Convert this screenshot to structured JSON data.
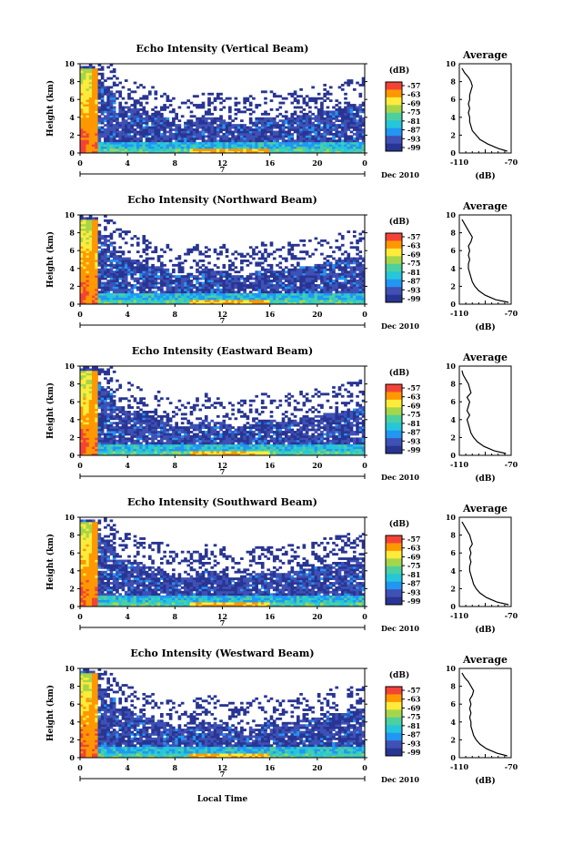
{
  "chart_data": [
    {
      "type": "heatmap",
      "title": "Echo Intensity (Vertical Beam)",
      "ylabel": "Height (km)",
      "ylim": [
        0,
        10
      ],
      "xlim": [
        0,
        24
      ],
      "yticks": [
        "0",
        "2",
        "4",
        "6",
        "8",
        "10"
      ],
      "xticks": [
        "0",
        "4",
        "8",
        "12",
        "16",
        "20",
        "0"
      ],
      "date_marker": "7",
      "date_label": "Dec 2010",
      "colorbar_unit": "(dB)",
      "colorbar_ticks": [
        "-57",
        "-63",
        "-69",
        "-75",
        "-81",
        "-87",
        "-93",
        "-99"
      ],
      "average": {
        "title": "Average",
        "xlabel": "(dB)",
        "xlim": [
          -110,
          -70
        ],
        "xticks": [
          "-110",
          "-70"
        ],
        "heights": [
          0.2,
          0.5,
          1.0,
          1.5,
          2.0,
          2.5,
          3.0,
          3.5,
          4.0,
          4.5,
          5.0,
          5.5,
          6.0,
          6.5,
          7.0,
          7.5,
          8.0,
          8.5,
          9.0,
          9.5
        ],
        "values": [
          -73,
          -80,
          -88,
          -94,
          -97,
          -100,
          -101,
          -102,
          -102,
          -103,
          -102,
          -103,
          -102,
          -102,
          -101,
          -100,
          -101,
          -103,
          -106,
          -108
        ]
      }
    },
    {
      "type": "heatmap",
      "title": "Echo Intensity (Northward Beam)",
      "ylabel": "Height (km)",
      "ylim": [
        0,
        10
      ],
      "xlim": [
        0,
        24
      ],
      "yticks": [
        "0",
        "2",
        "4",
        "6",
        "8",
        "10"
      ],
      "xticks": [
        "0",
        "4",
        "8",
        "12",
        "16",
        "20",
        "0"
      ],
      "date_marker": "7",
      "date_label": "Dec 2010",
      "colorbar_unit": "(dB)",
      "colorbar_ticks": [
        "-57",
        "-63",
        "-69",
        "-75",
        "-81",
        "-87",
        "-93",
        "-99"
      ],
      "average": {
        "title": "Average",
        "xlabel": "(dB)",
        "xlim": [
          -110,
          -70
        ],
        "xticks": [
          "-110",
          "-70"
        ],
        "heights": [
          0.2,
          0.5,
          1.0,
          1.5,
          2.0,
          2.5,
          3.0,
          3.5,
          4.0,
          4.5,
          5.0,
          5.5,
          6.0,
          6.5,
          7.0,
          7.5,
          8.0,
          8.5,
          9.0,
          9.5
        ],
        "values": [
          -72,
          -82,
          -90,
          -95,
          -98,
          -100,
          -101,
          -102,
          -103,
          -103,
          -102,
          -103,
          -102,
          -103,
          -101,
          -100,
          -102,
          -104,
          -106,
          -108
        ]
      }
    },
    {
      "type": "heatmap",
      "title": "Echo Intensity (Eastward Beam)",
      "ylabel": "Height (km)",
      "ylim": [
        0,
        10
      ],
      "xlim": [
        0,
        24
      ],
      "yticks": [
        "0",
        "2",
        "4",
        "6",
        "8",
        "10"
      ],
      "xticks": [
        "0",
        "4",
        "8",
        "12",
        "16",
        "20",
        "0"
      ],
      "date_marker": "7",
      "date_label": "Dec 2010",
      "colorbar_unit": "(dB)",
      "colorbar_ticks": [
        "-57",
        "-63",
        "-69",
        "-75",
        "-81",
        "-87",
        "-93",
        "-99"
      ],
      "average": {
        "title": "Average",
        "xlabel": "(dB)",
        "xlim": [
          -110,
          -70
        ],
        "xticks": [
          "-110",
          "-70"
        ],
        "heights": [
          0.2,
          0.5,
          1.0,
          1.5,
          2.0,
          2.5,
          3.0,
          3.5,
          4.0,
          4.5,
          5.0,
          5.5,
          6.0,
          6.5,
          7.0,
          7.5,
          8.0,
          8.5,
          9.0,
          9.5
        ],
        "values": [
          -74,
          -83,
          -91,
          -96,
          -99,
          -101,
          -102,
          -103,
          -104,
          -102,
          -104,
          -103,
          -102,
          -104,
          -101,
          -102,
          -103,
          -105,
          -107,
          -108
        ]
      }
    },
    {
      "type": "heatmap",
      "title": "Echo Intensity (Southward Beam)",
      "ylabel": "Height (km)",
      "ylim": [
        0,
        10
      ],
      "xlim": [
        0,
        24
      ],
      "yticks": [
        "0",
        "2",
        "4",
        "6",
        "8",
        "10"
      ],
      "xticks": [
        "0",
        "4",
        "8",
        "12",
        "16",
        "20",
        "0"
      ],
      "date_marker": "7",
      "date_label": "Dec 2010",
      "colorbar_unit": "(dB)",
      "colorbar_ticks": [
        "-57",
        "-63",
        "-69",
        "-75",
        "-81",
        "-87",
        "-93",
        "-99"
      ],
      "average": {
        "title": "Average",
        "xlabel": "(dB)",
        "xlim": [
          -110,
          -70
        ],
        "xticks": [
          "-110",
          "-70"
        ],
        "heights": [
          0.2,
          0.5,
          1.0,
          1.5,
          2.0,
          2.5,
          3.0,
          3.5,
          4.0,
          4.5,
          5.0,
          5.5,
          6.0,
          6.5,
          7.0,
          7.5,
          8.0,
          8.5,
          9.0,
          9.5
        ],
        "values": [
          -72,
          -81,
          -89,
          -94,
          -97,
          -99,
          -100,
          -101,
          -102,
          -102,
          -101,
          -102,
          -101,
          -102,
          -100,
          -101,
          -102,
          -104,
          -106,
          -108
        ]
      }
    },
    {
      "type": "heatmap",
      "title": "Echo Intensity (Westward Beam)",
      "ylabel": "Height (km)",
      "xlabel": "Local Time",
      "ylim": [
        0,
        10
      ],
      "xlim": [
        0,
        24
      ],
      "yticks": [
        "0",
        "2",
        "4",
        "6",
        "8",
        "10"
      ],
      "xticks": [
        "0",
        "4",
        "8",
        "12",
        "16",
        "20",
        "0"
      ],
      "date_marker": "7",
      "date_label": "Dec 2010",
      "colorbar_unit": "(dB)",
      "colorbar_ticks": [
        "-57",
        "-63",
        "-69",
        "-75",
        "-81",
        "-87",
        "-93",
        "-99"
      ],
      "average": {
        "title": "Average",
        "xlabel": "(dB)",
        "xlim": [
          -110,
          -70
        ],
        "xticks": [
          "-110",
          "-70"
        ],
        "heights": [
          0.2,
          0.5,
          1.0,
          1.5,
          2.0,
          2.5,
          3.0,
          3.5,
          4.0,
          4.5,
          5.0,
          5.5,
          6.0,
          6.5,
          7.0,
          7.5,
          8.0,
          8.5,
          9.0,
          9.5
        ],
        "values": [
          -73,
          -81,
          -89,
          -94,
          -97,
          -99,
          -100,
          -101,
          -101,
          -102,
          -101,
          -102,
          -101,
          -102,
          -100,
          -99,
          -101,
          -103,
          -106,
          -108
        ]
      }
    }
  ],
  "colors": {
    "colormap": [
      "#283593",
      "#3f51b5",
      "#2196f3",
      "#26c6da",
      "#4dd0a0",
      "#a5d64a",
      "#ffeb3b",
      "#ff9800",
      "#f44336"
    ]
  }
}
